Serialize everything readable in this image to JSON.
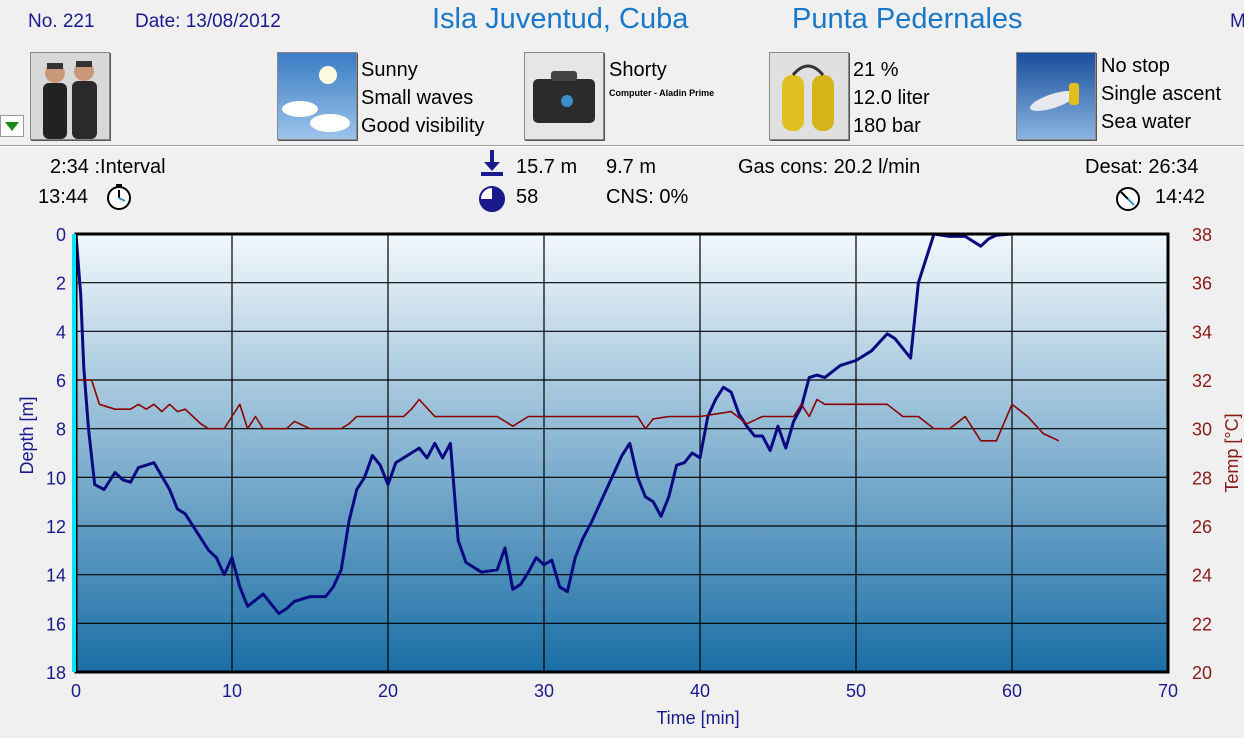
{
  "header": {
    "number": "No. 221",
    "date": "Date: 13/08/2012",
    "location": "Isla Juventud, Cuba",
    "site": "Punta Pedernales",
    "cut_text": "M"
  },
  "info": {
    "weather": [
      "Sunny",
      "Small waves",
      "Good visibility"
    ],
    "suit": "Shorty",
    "computer": "Computer - Aladin Prime",
    "gas": [
      "21 %",
      "12.0 liter",
      "180 bar"
    ],
    "deco": [
      "No stop",
      "Single ascent",
      "Sea water"
    ]
  },
  "stats": {
    "interval": "2:34 :Interval",
    "entry_time": "13:44",
    "max_depth": "15.7 m",
    "avg_depth": "9.7 m",
    "duration": "58",
    "cns": "CNS:  0%",
    "gas_cons": "Gas cons: 20.2 l/min",
    "desat": "Desat: 26:34",
    "exit_time": "14:42"
  },
  "colors": {
    "depth_line": "#0a0a80",
    "temp_line": "#8b0000",
    "title": "#1a78c8",
    "bg_top": "#f2f8fc",
    "bg_bottom": "#1a6ea6",
    "marker": "#00e5ff"
  },
  "icons": [
    "divers-icon",
    "weather-icon",
    "equipment-bag-icon",
    "gas-tanks-icon",
    "diver-ascent-icon",
    "dropdown-arrow-icon",
    "max-depth-icon",
    "duration-icon",
    "entry-clock-icon",
    "exit-clock-icon"
  ],
  "chart_data": {
    "type": "line",
    "xlabel": "Time [min]",
    "ylabel": "Depth [m]",
    "y2label": "Temp [°C]",
    "xlim": [
      0,
      70
    ],
    "ylim": [
      0,
      18
    ],
    "y2lim": [
      20,
      38
    ],
    "x_ticks": [
      "0",
      "10",
      "20",
      "30",
      "40",
      "50",
      "60",
      "70"
    ],
    "y_ticks": [
      "0",
      "2",
      "4",
      "6",
      "8",
      "10",
      "12",
      "14",
      "16",
      "18"
    ],
    "y2_ticks": [
      "38",
      "36",
      "34",
      "32",
      "30",
      "28",
      "26",
      "24",
      "22",
      "20"
    ],
    "grid": true,
    "series": [
      {
        "name": "Depth",
        "x": [
          0,
          0.3,
          0.5,
          0.8,
          1.2,
          1.8,
          2.5,
          3,
          3.5,
          4,
          4.5,
          5,
          6,
          6.5,
          7,
          8,
          8.5,
          9,
          9.5,
          10,
          10.5,
          11,
          12,
          13,
          13.5,
          14,
          15,
          16,
          16.5,
          17,
          17.5,
          18,
          18.5,
          19,
          19.5,
          20,
          20.5,
          21,
          22,
          22.5,
          23,
          23.5,
          24,
          24.5,
          25,
          26,
          27,
          27.5,
          28,
          28.5,
          29,
          29.5,
          30,
          30.5,
          31,
          31.5,
          32,
          32.5,
          33,
          34,
          35,
          35.5,
          36,
          36.5,
          37,
          37.5,
          38,
          38.5,
          39,
          39.5,
          40,
          40.5,
          41,
          41.5,
          42,
          42.5,
          43,
          43.5,
          44,
          44.5,
          45,
          45.5,
          46,
          46.5,
          47,
          47.5,
          48,
          49,
          50,
          51,
          52,
          52.5,
          53,
          53.5,
          54,
          55,
          56,
          57,
          58,
          58.5,
          59,
          60,
          61,
          62,
          63
        ],
        "y": [
          0,
          2.5,
          5.5,
          8,
          10.3,
          10.5,
          9.8,
          10.1,
          10.2,
          9.6,
          9.5,
          9.4,
          10.5,
          11.3,
          11.5,
          12.5,
          13,
          13.3,
          14,
          13.3,
          14.5,
          15.3,
          14.8,
          15.6,
          15.4,
          15.1,
          14.9,
          14.9,
          14.5,
          13.8,
          11.8,
          10.5,
          10,
          9.1,
          9.5,
          10.3,
          9.4,
          9.2,
          8.8,
          9.2,
          8.6,
          9.2,
          8.6,
          12.6,
          13.5,
          13.9,
          13.8,
          12.9,
          14.6,
          14.4,
          13.9,
          13.3,
          13.6,
          13.4,
          14.5,
          14.7,
          13.3,
          12.5,
          11.9,
          10.5,
          9.1,
          8.6,
          10,
          10.8,
          11,
          11.6,
          10.8,
          9.5,
          9.4,
          9,
          9.2,
          7.5,
          6.8,
          6.3,
          6.5,
          7.4,
          7.9,
          8.3,
          8.3,
          8.9,
          7.9,
          8.8,
          7.7,
          7.1,
          5.9,
          5.8,
          5.9,
          5.4,
          5.2,
          4.8,
          4.1,
          4.3,
          4.7,
          5.1,
          2,
          0,
          0.1,
          0.1,
          0.5,
          0.2,
          0.05,
          0,
          0,
          0,
          0
        ],
        "color": "#0a0a80"
      },
      {
        "name": "Temp",
        "x": [
          0,
          1,
          1.5,
          2.5,
          3.5,
          4,
          4.5,
          5,
          5.5,
          6,
          6.5,
          7,
          7.5,
          8,
          8.5,
          9.5,
          10,
          10.5,
          11,
          11.5,
          12,
          13,
          13.5,
          14,
          15,
          16,
          17,
          17.5,
          18,
          20,
          21,
          21.5,
          22,
          23,
          24,
          26,
          27,
          28,
          29,
          30,
          32,
          35,
          36,
          36.5,
          37,
          38,
          40,
          42,
          43,
          44,
          45,
          46,
          46.5,
          47,
          47.5,
          48,
          49,
          50,
          52,
          53,
          54,
          55,
          56,
          57,
          58,
          59,
          60,
          61,
          62,
          63
        ],
        "y": [
          32,
          32,
          31,
          30.8,
          30.8,
          31,
          30.8,
          31,
          30.7,
          31,
          30.7,
          30.8,
          30.5,
          30.2,
          30,
          30,
          30.5,
          31,
          30,
          30.5,
          30,
          30,
          30,
          30.3,
          30,
          30,
          30,
          30.2,
          30.5,
          30.5,
          30.5,
          30.8,
          31.2,
          30.5,
          30.5,
          30.5,
          30.5,
          30.1,
          30.5,
          30.5,
          30.5,
          30.5,
          30.5,
          30,
          30.4,
          30.5,
          30.5,
          30.7,
          30.2,
          30.5,
          30.5,
          30.5,
          31,
          30.5,
          31.2,
          31,
          31,
          31,
          31,
          30.5,
          30.5,
          30,
          30,
          30.5,
          29.5,
          29.5,
          31,
          30.5,
          29.8,
          29.5
        ],
        "color": "#8b0000"
      }
    ]
  }
}
